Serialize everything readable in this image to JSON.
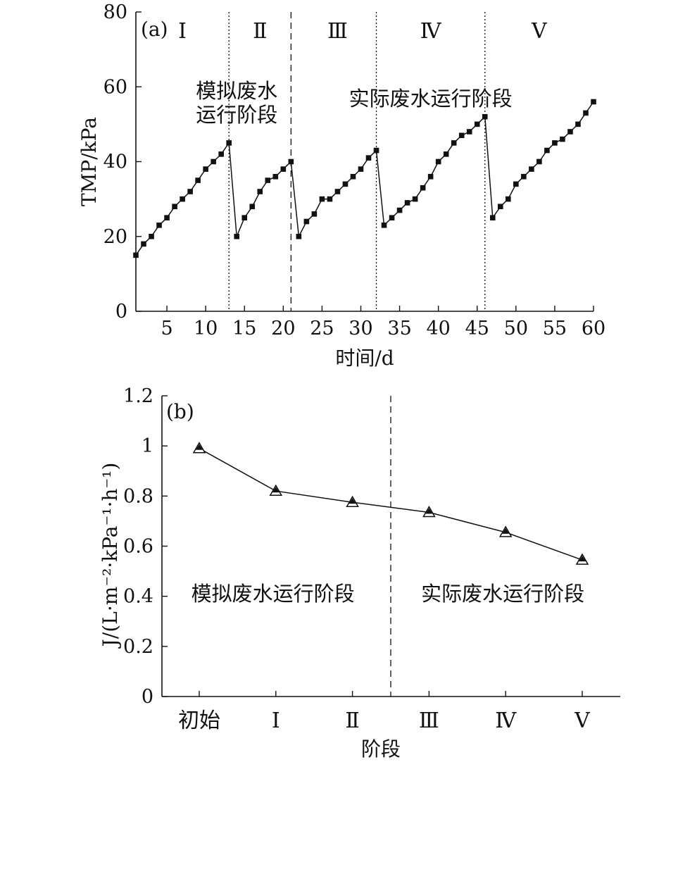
{
  "chart_data": [
    {
      "type": "line",
      "panel_label": "(a)",
      "xlabel": "时间/d",
      "ylabel": "TMP/kPa",
      "xlim": [
        1,
        60
      ],
      "ylim": [
        0,
        80
      ],
      "xticks": [
        5,
        10,
        15,
        20,
        25,
        30,
        35,
        40,
        45,
        50,
        55,
        60
      ],
      "yticks": [
        0,
        20,
        40,
        60,
        80
      ],
      "grid": false,
      "marker": "square",
      "x": [
        1,
        2,
        3,
        4,
        5,
        6,
        7,
        8,
        9,
        10,
        11,
        12,
        13,
        14,
        15,
        16,
        17,
        18,
        19,
        20,
        21,
        22,
        23,
        24,
        25,
        26,
        27,
        28,
        29,
        30,
        31,
        32,
        33,
        34,
        35,
        36,
        37,
        38,
        39,
        40,
        41,
        42,
        43,
        44,
        45,
        46,
        47,
        48,
        49,
        50,
        51,
        52,
        53,
        54,
        55,
        56,
        57,
        58,
        59,
        60
      ],
      "y": [
        15,
        18,
        20,
        23,
        25,
        28,
        30,
        32,
        35,
        38,
        40,
        42,
        45,
        20,
        25,
        28,
        32,
        35,
        36,
        38,
        40,
        20,
        24,
        26,
        30,
        30,
        32,
        34,
        36,
        38,
        41,
        43,
        23,
        25,
        27,
        29,
        30,
        33,
        36,
        40,
        42,
        45,
        47,
        48,
        50,
        52,
        25,
        28,
        30,
        34,
        36,
        38,
        40,
        43,
        45,
        46,
        48,
        50,
        53,
        56
      ],
      "stages": [
        {
          "label": "Ⅰ",
          "center": 7
        },
        {
          "label": "Ⅱ",
          "center": 17
        },
        {
          "label": "Ⅲ",
          "center": 27
        },
        {
          "label": "Ⅳ",
          "center": 39
        },
        {
          "label": "Ⅴ",
          "center": 53
        }
      ],
      "boundaries": [
        {
          "x": 13,
          "style": "dotted"
        },
        {
          "x": 21,
          "style": "dashed"
        },
        {
          "x": 32,
          "style": "dotted"
        },
        {
          "x": 46,
          "style": "dotted"
        }
      ],
      "annotations": [
        {
          "lines": [
            "模拟废水",
            "运行阶段"
          ],
          "x": 14,
          "y": 57
        },
        {
          "lines": [
            "实际废水运行阶段"
          ],
          "x": 39,
          "y": 55
        }
      ]
    },
    {
      "type": "line",
      "panel_label": "(b)",
      "xlabel": "阶段",
      "ylabel": "J/(L·m⁻²·kPa⁻¹·h⁻¹)",
      "categories": [
        "初始",
        "Ⅰ",
        "Ⅱ",
        "Ⅲ",
        "Ⅳ",
        "Ⅴ"
      ],
      "values": [
        0.99,
        0.82,
        0.775,
        0.735,
        0.655,
        0.545
      ],
      "ylim": [
        0,
        1.2
      ],
      "yticks": [
        0,
        0.2,
        0.4,
        0.6,
        0.8,
        1.0,
        1.2
      ],
      "grid": false,
      "marker": "triangle",
      "divider_after_index": 2.5,
      "annotations": [
        {
          "text": "模拟废水运行阶段",
          "x_index": 1.1,
          "y": 0.41
        },
        {
          "text": "实际废水运行阶段",
          "x_index": 4.1,
          "y": 0.41
        }
      ]
    }
  ]
}
